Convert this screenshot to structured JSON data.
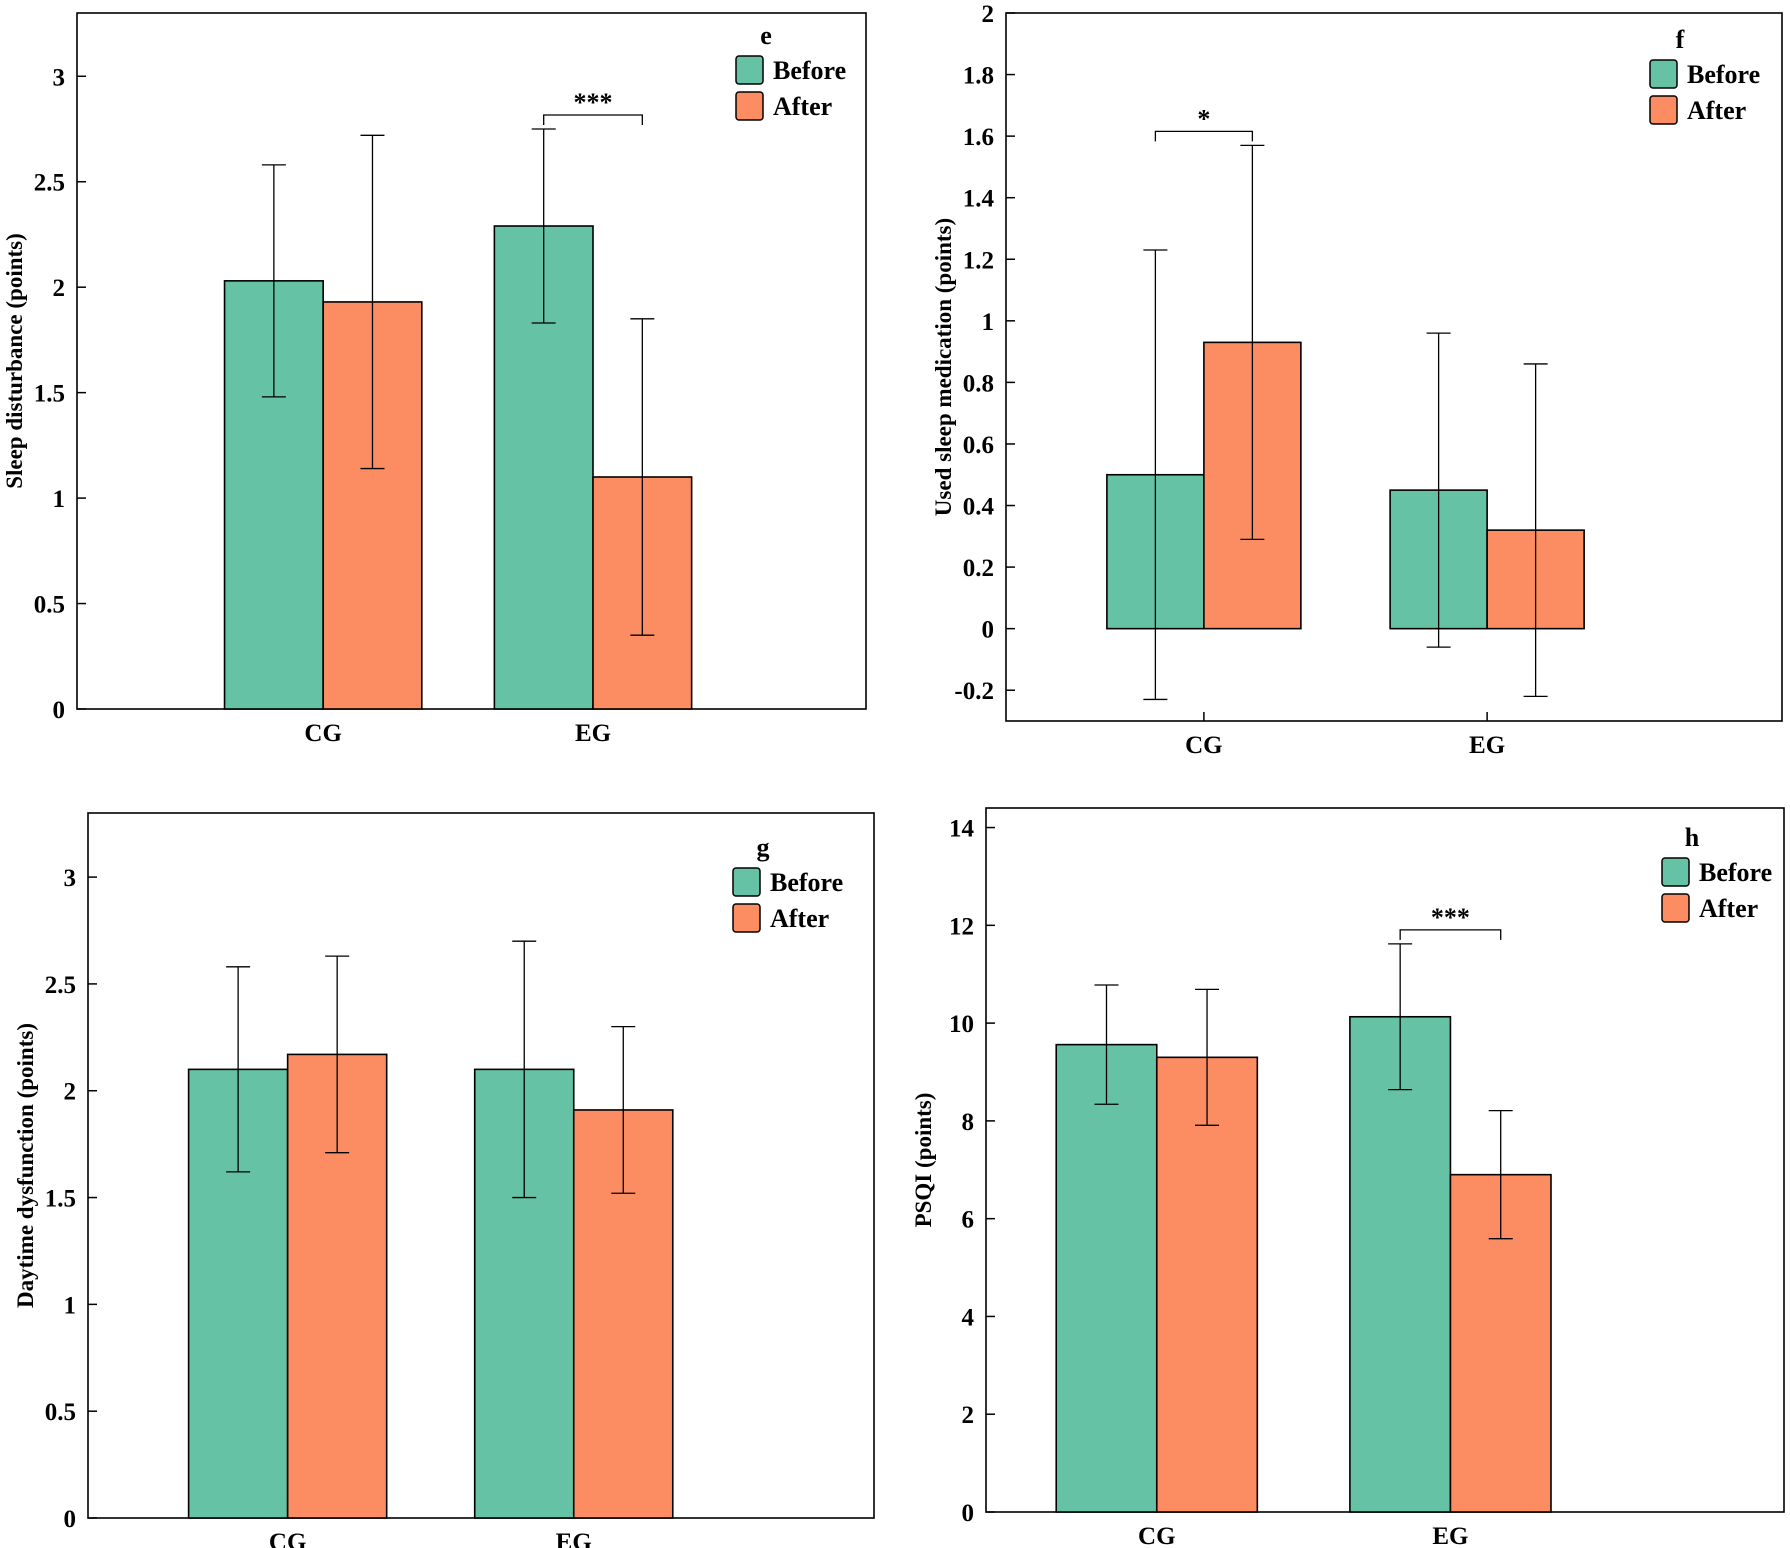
{
  "colors": {
    "before": "#66c2a5",
    "after": "#fc8d62",
    "axis": "#000000"
  },
  "chart_data": [
    {
      "type": "bar",
      "title": "e",
      "ylabel": "Sleep disturbance (points)",
      "xlabel": "",
      "categories": [
        "CG",
        "EG"
      ],
      "ylim": [
        0,
        3.3
      ],
      "yticks": [
        0,
        0.5,
        1,
        1.5,
        2,
        2.5,
        3
      ],
      "ytick_labels": [
        "0",
        "0.5",
        "1",
        "1.5",
        "2",
        "2.5",
        "3"
      ],
      "legend_position": "top-right",
      "series": [
        {
          "name": "Before",
          "values": [
            2.03,
            2.29
          ],
          "errors": [
            0.55,
            0.46
          ]
        },
        {
          "name": "After",
          "values": [
            1.93,
            1.1
          ],
          "errors": [
            0.79,
            0.75
          ]
        }
      ],
      "significance": [
        {
          "category": "EG",
          "label": "***"
        }
      ]
    },
    {
      "type": "bar",
      "title": "f",
      "ylabel": "Used sleep medication (points)",
      "xlabel": "",
      "categories": [
        "CG",
        "EG"
      ],
      "ylim": [
        -0.3,
        2.0
      ],
      "yticks": [
        -0.2,
        0,
        0.2,
        0.4,
        0.6,
        0.8,
        1,
        1.2,
        1.4,
        1.6,
        1.8,
        2
      ],
      "ytick_labels": [
        "-0.2",
        "0",
        "0.2",
        "0.4",
        "0.6",
        "0.8",
        "1",
        "1.2",
        "1.4",
        "1.6",
        "1.8",
        "2"
      ],
      "legend_position": "top-right",
      "series": [
        {
          "name": "Before",
          "values": [
            0.5,
            0.45
          ],
          "errors": [
            0.73,
            0.51
          ]
        },
        {
          "name": "After",
          "values": [
            0.93,
            0.32
          ],
          "errors": [
            0.64,
            0.54
          ]
        }
      ],
      "significance": [
        {
          "category": "CG",
          "label": "*"
        }
      ]
    },
    {
      "type": "bar",
      "title": "g",
      "ylabel": "Daytime dysfunction (points)",
      "xlabel": "",
      "categories": [
        "CG",
        "EG"
      ],
      "ylim": [
        0,
        3.3
      ],
      "yticks": [
        0,
        0.5,
        1,
        1.5,
        2,
        2.5,
        3
      ],
      "ytick_labels": [
        "0",
        "0.5",
        "1",
        "1.5",
        "2",
        "2.5",
        "3"
      ],
      "legend_position": "top-right",
      "series": [
        {
          "name": "Before",
          "values": [
            2.1,
            2.1
          ],
          "errors": [
            0.48,
            0.6
          ]
        },
        {
          "name": "After",
          "values": [
            2.17,
            1.91
          ],
          "errors": [
            0.46,
            0.39
          ]
        }
      ],
      "significance": []
    },
    {
      "type": "bar",
      "title": "h",
      "ylabel": "PSQI (points)",
      "xlabel": "",
      "categories": [
        "CG",
        "EG"
      ],
      "ylim": [
        0,
        14.4
      ],
      "yticks": [
        0,
        2,
        4,
        6,
        8,
        10,
        12,
        14
      ],
      "ytick_labels": [
        "0",
        "2",
        "4",
        "6",
        "8",
        "10",
        "12",
        "14"
      ],
      "legend_position": "top-right",
      "series": [
        {
          "name": "Before",
          "values": [
            9.56,
            10.13
          ],
          "errors": [
            1.22,
            1.49
          ]
        },
        {
          "name": "After",
          "values": [
            9.3,
            6.9
          ],
          "errors": [
            1.39,
            1.31
          ]
        }
      ],
      "significance": [
        {
          "category": "EG",
          "label": "***"
        }
      ]
    }
  ]
}
